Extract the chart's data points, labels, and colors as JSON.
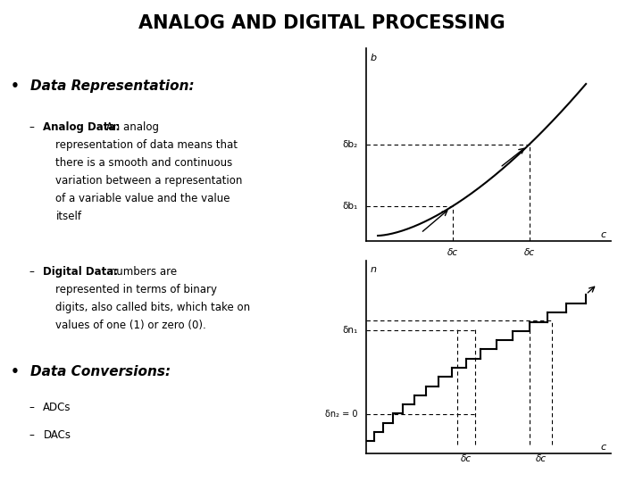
{
  "title": "ANALOG AND DIGITAL PROCESSING",
  "title_fontsize": 15,
  "title_fontweight": "bold",
  "bg_color": "#ffffff",
  "text_color": "#000000",
  "bullet1": "Data Representation:",
  "sub1_bold": "Analog Data:",
  "sub1_text": "An analog\nrepresentation of data means that\nthere is a smooth and continuous\nvariation between a representation\nof a variable value and the value\nitself",
  "sub2_bold": "Digital Data:",
  "sub2_text": "numbers are\nrepresented in terms of binary\ndigits, also called bits, which take on\nvalues of one (1) or zero (0).",
  "bullet2": "Data Conversions:",
  "sub3": "ADCs",
  "sub4": "DACs",
  "chart1_xlabel": "c",
  "chart1_ylabel": "b",
  "chart1_label_x1": "δc",
  "chart1_label_x2": "δc",
  "chart1_label_y1": "δb₁",
  "chart1_label_y2": "δb₂",
  "chart2_xlabel": "c",
  "chart2_ylabel": "n",
  "chart2_label_x1": "δc",
  "chart2_label_x2": "δc",
  "chart2_label_y1": "δn₁",
  "chart2_label_y2": "δn₂ = 0"
}
